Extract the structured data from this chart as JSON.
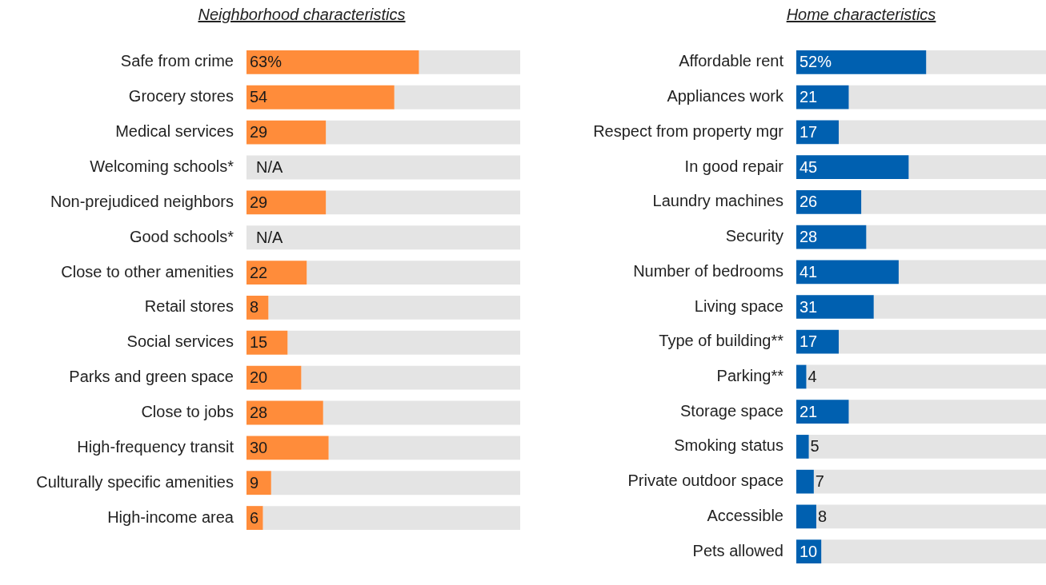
{
  "chart_data": [
    {
      "type": "bar",
      "orientation": "horizontal",
      "title": "Neighborhood characteristics",
      "categories": [
        "Safe from crime",
        "Grocery stores",
        "Medical services",
        "Welcoming schools*",
        "Non-prejudiced neighbors",
        "Good schools*",
        "Close to other amenities",
        "Retail stores",
        "Social services",
        "Parks and green space",
        "Close to jobs",
        "High-frequency transit",
        "Culturally specific amenities",
        "High-income area"
      ],
      "series": [
        {
          "color": "#ff8c3a",
          "values": [
            63,
            54,
            29,
            null,
            29,
            null,
            22,
            8,
            15,
            20,
            28,
            30,
            9,
            6
          ],
          "value_labels": [
            "63%",
            "54",
            "29",
            "N/A",
            "29",
            "N/A",
            "22",
            "8",
            "15",
            "20",
            "28",
            "30",
            "9",
            "6"
          ]
        },
        {
          "color": "#e4e4e4",
          "values": [
            37,
            46,
            71,
            100,
            71,
            100,
            78,
            92,
            85,
            80,
            72,
            70,
            91,
            94
          ]
        }
      ],
      "stacked": true,
      "xlim": [
        0,
        100
      ],
      "tick_labels": "y"
    },
    {
      "type": "bar",
      "orientation": "horizontal",
      "title": "Home characteristics",
      "categories": [
        "Affordable rent",
        "Appliances work",
        "Respect from property mgr",
        "In good repair",
        "Laundry machines",
        "Security",
        "Number of bedrooms",
        "Living space",
        "Type of building**",
        "Parking**",
        "Storage space",
        "Smoking status",
        "Private outdoor space",
        "Accessible",
        "Pets allowed"
      ],
      "series": [
        {
          "color": "#0060b0",
          "values": [
            52,
            21,
            17,
            45,
            26,
            28,
            41,
            31,
            17,
            4,
            21,
            5,
            7,
            8,
            10
          ],
          "value_labels": [
            "52%",
            "21",
            "17",
            "45",
            "26",
            "28",
            "41",
            "31",
            "17",
            "4",
            "21",
            "5",
            "7",
            "8",
            "10"
          ]
        },
        {
          "color": "#e4e4e4",
          "values": [
            48,
            79,
            83,
            55,
            74,
            72,
            59,
            69,
            83,
            96,
            79,
            95,
            93,
            92,
            90
          ]
        }
      ],
      "stacked": true,
      "xlim": [
        0,
        100
      ],
      "tick_labels": "y"
    }
  ]
}
